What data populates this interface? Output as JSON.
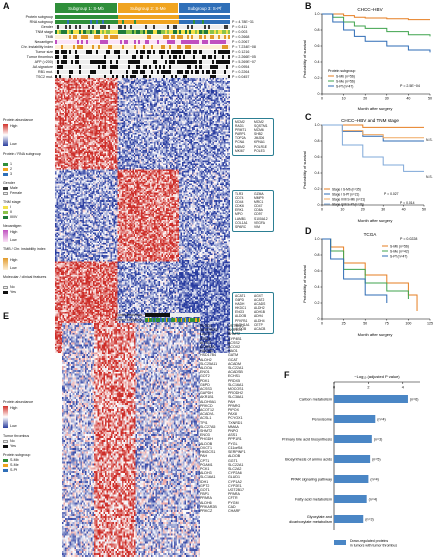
{
  "panelA": {
    "letter": "A",
    "subgroups": [
      "Subgroup 1: S-Mb",
      "Subgroup 2: S-Me",
      "Subgroup 3: S-Pf"
    ],
    "tracks": [
      {
        "name": "Protein subgroup",
        "p": ""
      },
      {
        "name": "RNA subgroup",
        "p": "P = 4.78E−31"
      },
      {
        "name": "Gender",
        "p": "P = 0.411"
      },
      {
        "name": "TNM stage",
        "p": "P = 0.003"
      },
      {
        "name": "TMB",
        "p": "P = 0.2668"
      },
      {
        "name": "Neoantigen",
        "p": "P = 0.2067"
      },
      {
        "name": "Chr. instability index",
        "p": "P = 7.234E−08"
      },
      {
        "name": "Tumor size",
        "p": "P = 0.1216"
      },
      {
        "name": "Tumor thrombus",
        "p": "P = 2.266E−05"
      },
      {
        "name": "AFP (>200)",
        "p": "P = 5.269E−07"
      },
      {
        "name": "AA signature",
        "p": "P = 0.0954"
      },
      {
        "name": "RB1 mut.",
        "p": "P = 0.2264"
      },
      {
        "name": "TSC2 mut.",
        "p": "P = 0.0457"
      }
    ],
    "legend": {
      "protein_abundance": "Protein abundance",
      "high": "High",
      "low": "Low",
      "protein_rna": "Protein / RNA subgroup",
      "groups": [
        "1",
        "2",
        "3"
      ],
      "gender": "Gender",
      "male": "Male",
      "female": "Female",
      "tnm": "TNM stage",
      "stages": [
        "I",
        "II",
        "III/IV"
      ],
      "neoantigen": "Neoantigen",
      "tmb_chr": "TMB / Chr. instability index",
      "molecular": "Molecular / clinical features",
      "no": "No",
      "yes": "Yes"
    },
    "gene_box1": [
      [
        "MCM2",
        "RAD1",
        "PRMT1",
        "PARP1",
        "TOP2A",
        "PCNA",
        "MDM2",
        "MKI67"
      ],
      [
        "MCM2",
        "SQSTM1",
        "MCM6",
        "SHB2",
        "JMJD6",
        "KPNA1",
        "POLR1E",
        "POLE3"
      ]
    ],
    "gene_box2": [
      [
        "TLR3",
        "CD74",
        "CD44",
        "CDK6",
        "ERK1",
        "MPO",
        "LAMB1",
        "COL1A1",
        "SPARC"
      ],
      [
        "GZMA",
        "MMP9",
        "MRC1",
        "CD47",
        "CD8A",
        "CD97",
        "S100A12",
        "VEGFA",
        "VIM"
      ]
    ],
    "gene_box3": [
      [
        "ACAT1",
        "G6PD",
        "HADH",
        "HKDC1",
        "ENO3",
        "ALDOB",
        "PFKFB1",
        "ALDH1A1",
        "ALDOB"
      ],
      [
        "AGXT",
        "ACAT2",
        "ACADS",
        "ALDH2",
        "ADH1B",
        "ADH4",
        "ALDH4",
        "CETP",
        "ACACB"
      ]
    ]
  },
  "panelB": {
    "letter": "B",
    "title": "CHCC–HBV",
    "ylabel": "Probability of survival",
    "xlabel": "Month after surgery",
    "legend_title": "Protein subgroup",
    "series": [
      "S-Mb (n=56)",
      "S-Me (n=56)",
      "S-Pf (n=47)"
    ],
    "pvalue": "P = 2.5E−04",
    "xticks": [
      "0",
      "10",
      "20",
      "30",
      "40",
      "50"
    ],
    "yticks": [
      "0",
      "0.2",
      "0.4",
      "0.6",
      "0.8",
      "1.0"
    ]
  },
  "panelC": {
    "letter": "C",
    "title": "CHCC–HBV and TNM stage",
    "ylabel": "Probability of survival",
    "xlabel": "Month after surgery",
    "series": [
      "Stage I S-Mb (n=35)",
      "Stage I S-Pf (n=21)",
      "Stage II/III S-Mb (n=21)",
      "Stage II/III S-Pf (n=26)"
    ],
    "pvalues": [
      "P = 0.027",
      "P = 0.014"
    ],
    "tags": [
      "N.S.",
      "N.S."
    ],
    "xticks": [
      "0",
      "10",
      "20",
      "30",
      "40",
      "50"
    ],
    "yticks": [
      "0",
      "0.2",
      "0.4",
      "0.6",
      "0.8",
      "1.0"
    ]
  },
  "panelD": {
    "letter": "D",
    "title": "TCGA",
    "ylabel": "Probability of survival",
    "xlabel": "Month after surgery",
    "series": [
      "S-Mb (n=56)",
      "S-Me (n=42)",
      "S-Pf (n=47)"
    ],
    "pvalue": "P = 0.0228",
    "xticks": [
      "0",
      "25",
      "50",
      "75",
      "100",
      "125"
    ],
    "yticks": [
      "0",
      "0.2",
      "0.4",
      "0.6",
      "0.8",
      "1.0"
    ]
  },
  "panelE": {
    "letter": "E",
    "tracks": [
      "Tumor thrombus",
      "Protein subgroup"
    ],
    "legend": {
      "protein_abundance": "Protein abundance",
      "high": "High",
      "low": "Low",
      "tumor_thrombus": "Tumor thrombus",
      "no": "No",
      "yes": "Yes",
      "protein_subgroup": "Protein subgroup",
      "groups": [
        "S-Mb",
        "S-Me",
        "S-Pf"
      ]
    },
    "genes_left": [
      "PLOD4",
      "SERPINE1",
      "LACTB",
      "STAT1",
      "ACAT2",
      "ACSM2A",
      "HADHB",
      "HSD17B4",
      "ALDH2",
      "SLC25A11",
      "ALDOA",
      "ENO1",
      "GOT2",
      "PDK1",
      "G6PD",
      "ACSS3",
      "GAPDH",
      "AKR1B1",
      "ALDH9A1",
      "PRKCD",
      "ACOT12",
      "ACADVL",
      "ACSL1",
      "TPI1",
      "SLC27A5",
      "SHMT2",
      "ENO3",
      "PHGDH",
      "ALDOB",
      "OXCT1",
      "HMGCS1",
      "PAH",
      "CPT1",
      "PGAM1",
      "PCK1",
      "ALDH3",
      "SLC16A1",
      "IDH1",
      "GPT2",
      "GOT1",
      "FBP1",
      "PPARA",
      "ALDH6",
      "PRKAR2B",
      "PRKCZ"
    ],
    "genes_right": [
      "UST3B10",
      "AKR1C4",
      "BHMT2",
      "CYP4B1",
      "ACSS2",
      "ACOX2",
      "HAO1",
      "GATM",
      "GCAT",
      "ACADM",
      "SLC22A1",
      "ACADSB",
      "ECHS1",
      "PRDX5",
      "SLC16A1",
      "MOCOS1",
      "PRODH2",
      "SLC38A1",
      "PAH",
      "PPARG",
      "PIPOX",
      "PAX8",
      "PCYOX1",
      "TXNRD1",
      "MMAA",
      "PNPO",
      "ASS1",
      "PPP1R1",
      "PYGL",
      "C11orf54",
      "SERPINF1",
      "ALDOB",
      "GGT1",
      "SLC22A1",
      "SLC2A2",
      "CYP2A6",
      "GLUD1",
      "CYP1A2",
      "CYP2E1",
      "UGT2B17",
      "PPARA",
      "CFTR",
      "PYGM",
      "CAD",
      "CHARF"
    ]
  },
  "panelF": {
    "letter": "F",
    "axis_title": "−Log₁₀ (adjusted P value)",
    "xticks": [
      "0",
      "2",
      "4"
    ],
    "bars": [
      {
        "label": "Carbon metabolism",
        "n": "(n=6)"
      },
      {
        "label": "Peroxisome",
        "n": "(n=4)"
      },
      {
        "label": "Primary bile acid biosynthesis",
        "n": "(n=3)"
      },
      {
        "label": "Biosynthesis of amino acids",
        "n": "(n=5)"
      },
      {
        "label": "PPAR signaling pathway",
        "n": "(n=4)"
      },
      {
        "label": "Fatty acid metabolism",
        "n": "(n=4)"
      },
      {
        "label": "Glyoxylate and dicarboxylate metabolism",
        "n": "(n=3)"
      }
    ],
    "legend": "Down-regulated proteins in tumors with tumor thrombus"
  },
  "chart_data": [
    {
      "type": "line",
      "title": "CHCC–HBV",
      "xlabel": "Month after surgery",
      "ylabel": "Probability of survival",
      "xlim": [
        0,
        50
      ],
      "ylim": [
        0,
        1
      ],
      "series": [
        {
          "name": "S-Mb (n=56)",
          "color": "#e67e22",
          "x": [
            0,
            5,
            10,
            15,
            20,
            30,
            40,
            50
          ],
          "y": [
            1.0,
            1.0,
            0.98,
            0.96,
            0.95,
            0.94,
            0.93,
            0.93
          ]
        },
        {
          "name": "S-Me (n=56)",
          "color": "#3fa34d",
          "x": [
            0,
            5,
            10,
            15,
            20,
            30,
            40,
            50
          ],
          "y": [
            1.0,
            0.96,
            0.9,
            0.85,
            0.82,
            0.78,
            0.74,
            0.72
          ]
        },
        {
          "name": "S-Pf (n=47)",
          "color": "#2e6bb5",
          "x": [
            0,
            5,
            10,
            15,
            20,
            30,
            40,
            50
          ],
          "y": [
            1.0,
            0.9,
            0.8,
            0.72,
            0.66,
            0.6,
            0.55,
            0.52
          ]
        }
      ]
    },
    {
      "type": "line",
      "title": "CHCC–HBV and TNM stage",
      "xlabel": "Month after surgery",
      "ylabel": "Probability of survival",
      "xlim": [
        0,
        50
      ],
      "ylim": [
        0,
        1
      ],
      "series": [
        {
          "name": "Stage I S-Mb (n=35)",
          "color": "#e67e22",
          "x": [
            0,
            10,
            20,
            30,
            40,
            50
          ],
          "y": [
            1.0,
            1.0,
            0.97,
            0.97,
            0.97,
            0.97
          ]
        },
        {
          "name": "Stage I S-Pf (n=21)",
          "color": "#2e6bb5",
          "x": [
            0,
            10,
            20,
            30,
            40,
            50
          ],
          "y": [
            1.0,
            0.92,
            0.86,
            0.8,
            0.8,
            0.8
          ]
        },
        {
          "name": "Stage II/III S-Mb (n=21)",
          "color": "#f0a860",
          "x": [
            0,
            10,
            20,
            30,
            40,
            50
          ],
          "y": [
            1.0,
            0.93,
            0.88,
            0.84,
            0.84,
            0.84
          ]
        },
        {
          "name": "Stage II/III S-Pf (n=26)",
          "color": "#7fa8d8",
          "x": [
            0,
            10,
            20,
            30,
            40,
            50
          ],
          "y": [
            1.0,
            0.75,
            0.6,
            0.5,
            0.42,
            0.42
          ]
        }
      ]
    },
    {
      "type": "line",
      "title": "TCGA",
      "xlabel": "Month after surgery",
      "ylabel": "Probability of survival",
      "xlim": [
        0,
        125
      ],
      "ylim": [
        0,
        1
      ],
      "series": [
        {
          "name": "S-Mb (n=56)",
          "color": "#e67e22",
          "x": [
            0,
            10,
            25,
            50,
            75,
            100,
            110
          ],
          "y": [
            1.0,
            0.9,
            0.7,
            0.55,
            0.45,
            0.3,
            0.1
          ]
        },
        {
          "name": "S-Me (n=42)",
          "color": "#3fa34d",
          "x": [
            0,
            10,
            25,
            50,
            75,
            100
          ],
          "y": [
            1.0,
            0.85,
            0.62,
            0.45,
            0.35,
            0.25
          ]
        },
        {
          "name": "S-Pf (n=47)",
          "color": "#2e6bb5",
          "x": [
            0,
            10,
            25,
            50,
            75
          ],
          "y": [
            1.0,
            0.75,
            0.5,
            0.3,
            0.2
          ]
        }
      ]
    },
    {
      "type": "bar",
      "orientation": "horizontal",
      "xlabel": "−Log₁₀ (adjusted P value)",
      "xlim": [
        0,
        5
      ],
      "categories": [
        "Carbon metabolism",
        "Peroxisome",
        "Primary bile acid biosynthesis",
        "Biosynthesis of amino acids",
        "PPAR signaling pathway",
        "Fatty acid metabolism",
        "Glyoxylate and dicarboxylate metabolism"
      ],
      "values": [
        4.3,
        2.4,
        2.2,
        2.1,
        2.0,
        1.9,
        1.7
      ],
      "color": "#4a86c5"
    }
  ]
}
